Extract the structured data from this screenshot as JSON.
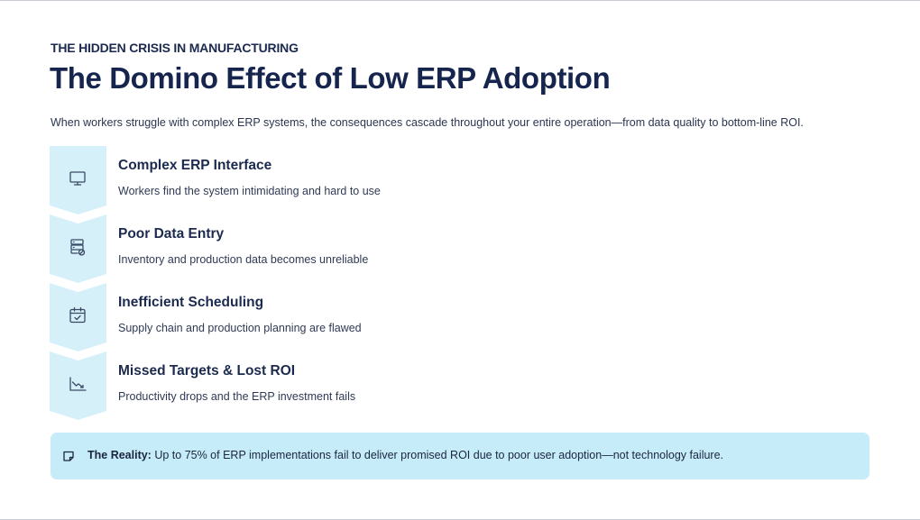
{
  "header": {
    "eyebrow": "THE HIDDEN CRISIS IN MANUFACTURING",
    "title": "The Domino Effect of Low ERP Adoption",
    "subtitle": "When workers struggle with complex ERP systems, the consequences cascade throughout your entire operation—from data quality to bottom-line ROI."
  },
  "steps": [
    {
      "icon": "monitor-icon",
      "title": "Complex ERP Interface",
      "description": "Workers find the system intimidating and hard to use"
    },
    {
      "icon": "database-error-icon",
      "title": "Poor Data Entry",
      "description": "Inventory and production data becomes unreliable"
    },
    {
      "icon": "calendar-check-icon",
      "title": "Inefficient Scheduling",
      "description": "Supply chain and production planning are flawed"
    },
    {
      "icon": "trending-down-icon",
      "title": "Missed Targets & Lost ROI",
      "description": "Productivity drops and the ERP investment fails"
    }
  ],
  "callout": {
    "icon": "note-icon",
    "label": "The Reality:",
    "text": "Up to 75% of ERP implementations fail to deliver promised ROI due to poor user adoption—not technology failure."
  },
  "colors": {
    "chevron": "#d6f0fa",
    "icon_stroke": "#3a4a66",
    "callout_bg": "#c6ecf9",
    "heading": "#16254d"
  }
}
